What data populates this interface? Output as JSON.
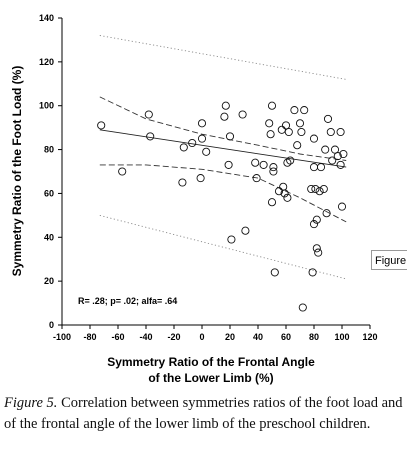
{
  "chart_data": {
    "type": "scatter",
    "xlabel_line1": "Symmetry Ratio of the Frontal Angle",
    "xlabel_line2": "of the Lower Limb (%)",
    "ylabel": "Symmetry Ratio of the Foot Load (%)",
    "xlim": [
      -100,
      120
    ],
    "ylim": [
      0,
      140
    ],
    "x_ticks": [
      -100,
      -80,
      -60,
      -40,
      -20,
      0,
      20,
      40,
      60,
      80,
      100,
      120
    ],
    "y_ticks": [
      0,
      20,
      40,
      60,
      80,
      100,
      120,
      140
    ],
    "stats_text": "R= .28; p= .02; alfa= .64",
    "grid": false,
    "points": [
      {
        "x": -72,
        "y": 91
      },
      {
        "x": -57,
        "y": 70
      },
      {
        "x": -38,
        "y": 96
      },
      {
        "x": -37,
        "y": 86
      },
      {
        "x": -14,
        "y": 65
      },
      {
        "x": -13,
        "y": 81
      },
      {
        "x": -7,
        "y": 83
      },
      {
        "x": -1,
        "y": 67
      },
      {
        "x": 0,
        "y": 92
      },
      {
        "x": 0,
        "y": 85
      },
      {
        "x": 3,
        "y": 79
      },
      {
        "x": 16,
        "y": 95
      },
      {
        "x": 17,
        "y": 100
      },
      {
        "x": 19,
        "y": 73
      },
      {
        "x": 20,
        "y": 86
      },
      {
        "x": 21,
        "y": 39
      },
      {
        "x": 29,
        "y": 96
      },
      {
        "x": 31,
        "y": 43
      },
      {
        "x": 38,
        "y": 74
      },
      {
        "x": 39,
        "y": 67
      },
      {
        "x": 44,
        "y": 73
      },
      {
        "x": 48,
        "y": 92
      },
      {
        "x": 49,
        "y": 87
      },
      {
        "x": 50,
        "y": 100
      },
      {
        "x": 50,
        "y": 56
      },
      {
        "x": 51,
        "y": 72
      },
      {
        "x": 51,
        "y": 70
      },
      {
        "x": 52,
        "y": 24
      },
      {
        "x": 55,
        "y": 61
      },
      {
        "x": 57,
        "y": 89
      },
      {
        "x": 58,
        "y": 63
      },
      {
        "x": 59,
        "y": 60
      },
      {
        "x": 60,
        "y": 91
      },
      {
        "x": 61,
        "y": 74
      },
      {
        "x": 61,
        "y": 58
      },
      {
        "x": 62,
        "y": 88
      },
      {
        "x": 63,
        "y": 75
      },
      {
        "x": 66,
        "y": 98
      },
      {
        "x": 68,
        "y": 82
      },
      {
        "x": 70,
        "y": 92
      },
      {
        "x": 71,
        "y": 88
      },
      {
        "x": 72,
        "y": 8
      },
      {
        "x": 73,
        "y": 98
      },
      {
        "x": 78,
        "y": 62
      },
      {
        "x": 79,
        "y": 24
      },
      {
        "x": 80,
        "y": 46
      },
      {
        "x": 80,
        "y": 72
      },
      {
        "x": 80,
        "y": 85
      },
      {
        "x": 81,
        "y": 62
      },
      {
        "x": 82,
        "y": 48
      },
      {
        "x": 82,
        "y": 35
      },
      {
        "x": 83,
        "y": 33
      },
      {
        "x": 84,
        "y": 61
      },
      {
        "x": 85,
        "y": 72
      },
      {
        "x": 87,
        "y": 62
      },
      {
        "x": 88,
        "y": 80
      },
      {
        "x": 89,
        "y": 51
      },
      {
        "x": 90,
        "y": 94
      },
      {
        "x": 92,
        "y": 88
      },
      {
        "x": 93,
        "y": 75
      },
      {
        "x": 95,
        "y": 80
      },
      {
        "x": 97,
        "y": 77
      },
      {
        "x": 99,
        "y": 73
      },
      {
        "x": 99,
        "y": 88
      },
      {
        "x": 100,
        "y": 54
      },
      {
        "x": 101,
        "y": 78
      }
    ],
    "regression_line": [
      {
        "x": -73,
        "y": 89
      },
      {
        "x": 103,
        "y": 72
      }
    ],
    "confidence_band_upper": [
      {
        "x": -73,
        "y": 104
      },
      {
        "x": -40,
        "y": 94
      },
      {
        "x": 0,
        "y": 87
      },
      {
        "x": 40,
        "y": 82
      },
      {
        "x": 70,
        "y": 78
      },
      {
        "x": 103,
        "y": 75
      }
    ],
    "confidence_band_lower": [
      {
        "x": -73,
        "y": 73
      },
      {
        "x": -40,
        "y": 73
      },
      {
        "x": 0,
        "y": 71
      },
      {
        "x": 40,
        "y": 67
      },
      {
        "x": 70,
        "y": 58
      },
      {
        "x": 103,
        "y": 47
      }
    ],
    "prediction_band_upper": [
      {
        "x": -73,
        "y": 132
      },
      {
        "x": 103,
        "y": 112
      }
    ],
    "prediction_band_lower": [
      {
        "x": -73,
        "y": 50
      },
      {
        "x": 103,
        "y": 21
      }
    ]
  },
  "caption": {
    "label": "Figure 5.",
    "text": " Correlation between symmetries ratios of the foot load and of the frontal angle of the lower limb of the preschool children."
  },
  "figure_tag": "Figure"
}
